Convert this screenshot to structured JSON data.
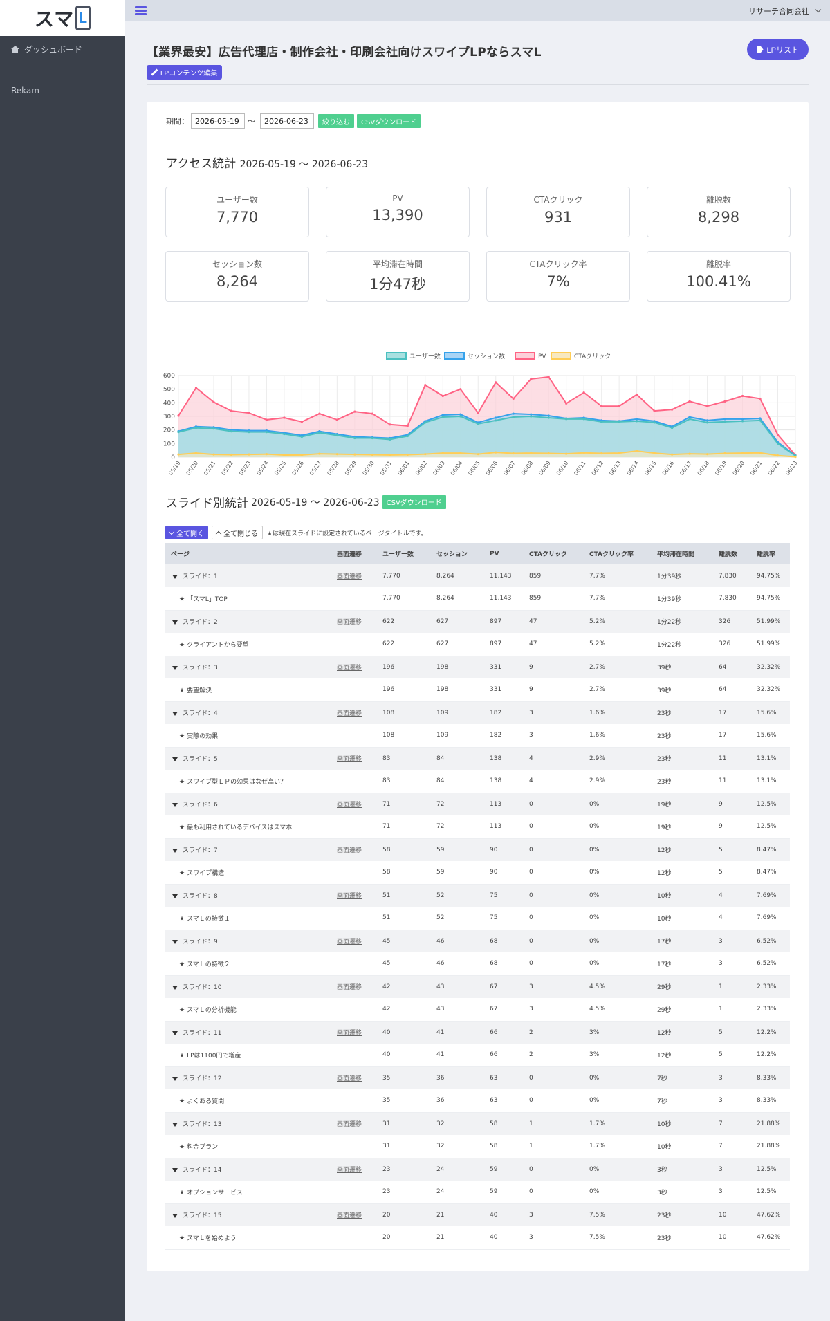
{
  "logo": {
    "text": "スマ",
    "letter": "L"
  },
  "sidebar": {
    "items": [
      {
        "label": "ダッシュボード",
        "icon": "home-icon"
      },
      {
        "label": "Rekam"
      }
    ]
  },
  "topbar": {
    "company": "リサーチ合同会社"
  },
  "header": {
    "title": "【業界最安】広告代理店・制作会社・印刷会社向けスワイプLPならスマL",
    "edit_button": "LPコンテンツ編集",
    "lp_list_button": "LPリスト"
  },
  "filter": {
    "label": "期間：",
    "from": "2026-05-19",
    "to": "2026-06-23",
    "tilde": "〜",
    "apply": "絞り込む",
    "csv": "CSVダウンロード"
  },
  "access": {
    "title": "アクセス統計",
    "range": "2026-05-19 〜 2026-06-23",
    "stats": [
      {
        "label": "ユーザー数",
        "value": "7,770"
      },
      {
        "label": "PV",
        "value": "13,390"
      },
      {
        "label": "CTAクリック",
        "value": "931"
      },
      {
        "label": "離脱数",
        "value": "8,298"
      },
      {
        "label": "セッション数",
        "value": "8,264"
      },
      {
        "label": "平均滞在時間",
        "value": "1分47秒"
      },
      {
        "label": "CTAクリック率",
        "value": "7%"
      },
      {
        "label": "離脱率",
        "value": "100.41%"
      }
    ]
  },
  "chart_data": {
    "type": "area",
    "x": [
      "05/19",
      "05/20",
      "05/21",
      "05/22",
      "05/23",
      "05/24",
      "05/25",
      "05/26",
      "05/27",
      "05/28",
      "05/29",
      "05/30",
      "05/31",
      "06/01",
      "06/02",
      "06/03",
      "06/04",
      "06/05",
      "06/06",
      "06/07",
      "06/08",
      "06/09",
      "06/10",
      "06/11",
      "06/12",
      "06/13",
      "06/14",
      "06/15",
      "06/16",
      "06/17",
      "06/18",
      "06/19",
      "06/20",
      "06/21",
      "06/22",
      "06/23"
    ],
    "ylim": [
      0,
      600
    ],
    "yticks": [
      "0",
      "100",
      "200",
      "300",
      "400",
      "500",
      "600"
    ],
    "grid": true,
    "legend": "top-center",
    "series": [
      {
        "name": "ユーザー数",
        "color": "#4bc0c0",
        "fill": "#a8e0e0",
        "values": [
          185,
          215,
          210,
          190,
          185,
          185,
          170,
          150,
          180,
          160,
          140,
          140,
          130,
          155,
          255,
          295,
          300,
          245,
          270,
          295,
          300,
          290,
          280,
          280,
          260,
          260,
          265,
          255,
          215,
          280,
          255,
          260,
          265,
          270,
          100,
          10
        ]
      },
      {
        "name": "セッション数",
        "color": "#36a2eb",
        "fill": "#a9d4f5",
        "values": [
          190,
          225,
          220,
          200,
          195,
          195,
          180,
          160,
          190,
          170,
          150,
          145,
          140,
          165,
          265,
          310,
          315,
          255,
          290,
          320,
          315,
          305,
          285,
          290,
          270,
          265,
          280,
          265,
          225,
          295,
          270,
          280,
          280,
          285,
          110,
          12
        ]
      },
      {
        "name": "PV",
        "color": "#ff6384",
        "fill": "#fcd0d9",
        "values": [
          305,
          510,
          405,
          340,
          325,
          275,
          290,
          260,
          320,
          275,
          335,
          320,
          240,
          230,
          530,
          450,
          500,
          325,
          550,
          430,
          575,
          590,
          395,
          475,
          375,
          375,
          460,
          340,
          350,
          410,
          375,
          410,
          450,
          430,
          165,
          15
        ]
      },
      {
        "name": "CTAクリック",
        "color": "#ffcd56",
        "fill": "#f7e8c0",
        "values": [
          20,
          30,
          20,
          18,
          20,
          22,
          15,
          16,
          25,
          22,
          20,
          18,
          16,
          18,
          22,
          30,
          30,
          22,
          35,
          28,
          30,
          28,
          25,
          32,
          28,
          30,
          45,
          30,
          20,
          25,
          22,
          28,
          30,
          32,
          12,
          2
        ]
      }
    ]
  },
  "slides": {
    "title": "スライド別統計",
    "range": "2026-05-19 〜 2026-06-23",
    "csv": "CSVダウンロード",
    "open_all": "全て開く",
    "close_all": "全て閉じる",
    "note": "★は現在スライドに設定されているページタイトルです。",
    "columns": [
      "ページ",
      "画面遷移",
      "ユーザー数",
      "セッション",
      "PV",
      "CTAクリック",
      "CTAクリック率",
      "平均滞在時間",
      "離脱数",
      "離脱率"
    ],
    "transition_label": "画面遷移",
    "rows": [
      {
        "slide": "スライド：1",
        "page": "「スマL」TOP",
        "users": "7,770",
        "sessions": "8,264",
        "pv": "11,143",
        "cta": "859",
        "cta_rate": "7.7%",
        "avg": "1分39秒",
        "exits": "7,830",
        "exit_rate": "94.75%"
      },
      {
        "slide": "スライド：2",
        "page": "クライアントから要望",
        "users": "622",
        "sessions": "627",
        "pv": "897",
        "cta": "47",
        "cta_rate": "5.2%",
        "avg": "1分22秒",
        "exits": "326",
        "exit_rate": "51.99%"
      },
      {
        "slide": "スライド：3",
        "page": "要望解決",
        "users": "196",
        "sessions": "198",
        "pv": "331",
        "cta": "9",
        "cta_rate": "2.7%",
        "avg": "39秒",
        "exits": "64",
        "exit_rate": "32.32%"
      },
      {
        "slide": "スライド：4",
        "page": "実際の効果",
        "users": "108",
        "sessions": "109",
        "pv": "182",
        "cta": "3",
        "cta_rate": "1.6%",
        "avg": "23秒",
        "exits": "17",
        "exit_rate": "15.6%"
      },
      {
        "slide": "スライド：5",
        "page": "スワイプ型ＬＰの効果はなぜ高い？",
        "users": "83",
        "sessions": "84",
        "pv": "138",
        "cta": "4",
        "cta_rate": "2.9%",
        "avg": "23秒",
        "exits": "11",
        "exit_rate": "13.1%"
      },
      {
        "slide": "スライド：6",
        "page": "最も利用されているデバイスはスマホ",
        "users": "71",
        "sessions": "72",
        "pv": "113",
        "cta": "0",
        "cta_rate": "0%",
        "avg": "19秒",
        "exits": "9",
        "exit_rate": "12.5%"
      },
      {
        "slide": "スライド：7",
        "page": "スワイプ構造",
        "users": "58",
        "sessions": "59",
        "pv": "90",
        "cta": "0",
        "cta_rate": "0%",
        "avg": "12秒",
        "exits": "5",
        "exit_rate": "8.47%"
      },
      {
        "slide": "スライド：8",
        "page": "スマＬの特徴１",
        "users": "51",
        "sessions": "52",
        "pv": "75",
        "cta": "0",
        "cta_rate": "0%",
        "avg": "10秒",
        "exits": "4",
        "exit_rate": "7.69%"
      },
      {
        "slide": "スライド：9",
        "page": "スマＬの特徴２",
        "users": "45",
        "sessions": "46",
        "pv": "68",
        "cta": "0",
        "cta_rate": "0%",
        "avg": "17秒",
        "exits": "3",
        "exit_rate": "6.52%"
      },
      {
        "slide": "スライド：10",
        "page": "スマＬの分析機能",
        "users": "42",
        "sessions": "43",
        "pv": "67",
        "cta": "3",
        "cta_rate": "4.5%",
        "avg": "29秒",
        "exits": "1",
        "exit_rate": "2.33%"
      },
      {
        "slide": "スライド：11",
        "page": "LPは1100円で増産",
        "users": "40",
        "sessions": "41",
        "pv": "66",
        "cta": "2",
        "cta_rate": "3%",
        "avg": "12秒",
        "exits": "5",
        "exit_rate": "12.2%"
      },
      {
        "slide": "スライド：12",
        "page": "よくある質問",
        "users": "35",
        "sessions": "36",
        "pv": "63",
        "cta": "0",
        "cta_rate": "0%",
        "avg": "7秒",
        "exits": "3",
        "exit_rate": "8.33%"
      },
      {
        "slide": "スライド：13",
        "page": "料金プラン",
        "users": "31",
        "sessions": "32",
        "pv": "58",
        "cta": "1",
        "cta_rate": "1.7%",
        "avg": "10秒",
        "exits": "7",
        "exit_rate": "21.88%"
      },
      {
        "slide": "スライド：14",
        "page": "オプションサービス",
        "users": "23",
        "sessions": "24",
        "pv": "59",
        "cta": "0",
        "cta_rate": "0%",
        "avg": "3秒",
        "exits": "3",
        "exit_rate": "12.5%"
      },
      {
        "slide": "スライド：15",
        "page": "スマＬを始めよう",
        "users": "20",
        "sessions": "21",
        "pv": "40",
        "cta": "3",
        "cta_rate": "7.5%",
        "avg": "23秒",
        "exits": "10",
        "exit_rate": "47.62%"
      }
    ]
  }
}
